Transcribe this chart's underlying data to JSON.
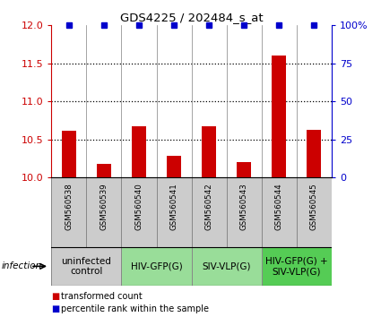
{
  "title": "GDS4225 / 202484_s_at",
  "samples": [
    "GSM560538",
    "GSM560539",
    "GSM560540",
    "GSM560541",
    "GSM560542",
    "GSM560543",
    "GSM560544",
    "GSM560545"
  ],
  "transformed_counts": [
    10.62,
    10.18,
    10.67,
    10.28,
    10.67,
    10.2,
    11.6,
    10.63
  ],
  "percentile_ranks": [
    100,
    100,
    100,
    100,
    100,
    100,
    100,
    100
  ],
  "ylim_left": [
    10,
    12
  ],
  "ylim_right": [
    0,
    100
  ],
  "yticks_left": [
    10,
    10.5,
    11,
    11.5,
    12
  ],
  "yticks_right": [
    0,
    25,
    50,
    75,
    100
  ],
  "bar_color": "#cc0000",
  "dot_color": "#0000cc",
  "groups": [
    {
      "label": "uninfected\ncontrol",
      "start": 0,
      "end": 2,
      "color": "#cccccc"
    },
    {
      "label": "HIV-GFP(G)",
      "start": 2,
      "end": 4,
      "color": "#99dd99"
    },
    {
      "label": "SIV-VLP(G)",
      "start": 4,
      "end": 6,
      "color": "#99dd99"
    },
    {
      "label": "HIV-GFP(G) +\nSIV-VLP(G)",
      "start": 6,
      "end": 8,
      "color": "#55cc55"
    }
  ],
  "infection_label": "infection",
  "legend_bar_label": "transformed count",
  "legend_dot_label": "percentile rank within the sample",
  "background_color": "#ffffff",
  "sample_box_color": "#cccccc",
  "left_axis_color": "#cc0000",
  "right_axis_color": "#0000cc",
  "grid_dotted_color": "#000000",
  "bar_width": 0.4,
  "n_samples": 8
}
